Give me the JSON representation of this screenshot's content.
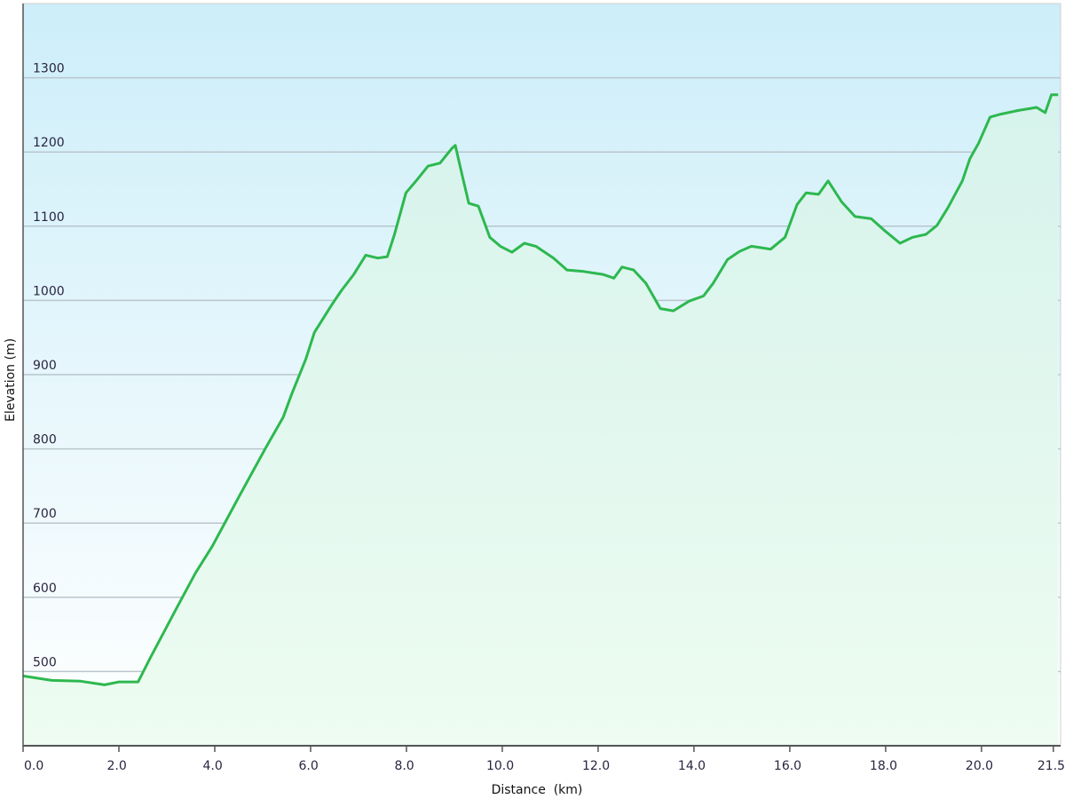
{
  "chart_data": {
    "type": "area",
    "title": "",
    "xlabel": "Distance  (km)",
    "ylabel": "Elevation (m)",
    "xlim": [
      0,
      21.65
    ],
    "ylim": [
      400,
      1400
    ],
    "grid": true,
    "x_ticks": [
      "0.0",
      "2.0",
      "4.0",
      "6.0",
      "8.0",
      "10.0",
      "12.0",
      "14.0",
      "16.0",
      "18.0",
      "20.0",
      "21.5"
    ],
    "x_tick_values": [
      0,
      2,
      4,
      6,
      8,
      10,
      12,
      14,
      16,
      18,
      20,
      21.5
    ],
    "y_ticks": [
      "500",
      "600",
      "700",
      "800",
      "900",
      "1000",
      "1100",
      "1200",
      "1300"
    ],
    "y_tick_values": [
      500,
      600,
      700,
      800,
      900,
      1000,
      1100,
      1200,
      1300
    ],
    "colors": {
      "line": "#2db84f",
      "sky_top": "#cdeef9",
      "fill_top": "#d6f3ec",
      "fill_bottom": "#eefcf1"
    },
    "series": [
      {
        "x": [
          0,
          0.6,
          1.2,
          1.7,
          2.0,
          2.4,
          2.66,
          3.2,
          3.6,
          3.95,
          4.5,
          5.06,
          5.43,
          5.6,
          5.9,
          6.08,
          6.45,
          6.64,
          6.9,
          7.15,
          7.4,
          7.6,
          7.75,
          7.99,
          8.2,
          8.45,
          8.7,
          8.95,
          9.02,
          9.17,
          9.3,
          9.5,
          9.74,
          9.96,
          10.2,
          10.46,
          10.7,
          11.07,
          11.35,
          11.7,
          12.1,
          12.33,
          12.5,
          12.74,
          13.0,
          13.3,
          13.57,
          13.9,
          14.2,
          14.4,
          14.7,
          14.95,
          15.2,
          15.4,
          15.6,
          15.9,
          16.15,
          16.34,
          16.6,
          16.8,
          17.08,
          17.36,
          17.7,
          18.0,
          18.3,
          18.56,
          18.84,
          19.07,
          19.3,
          19.6,
          19.76,
          19.94,
          20.18,
          20.4,
          20.77,
          21.15,
          21.33,
          21.46,
          21.6
        ],
        "y": [
          494,
          488,
          487,
          482,
          486,
          486,
          519,
          585,
          633,
          669,
          735,
          801,
          843,
          873,
          921,
          957,
          995,
          1013,
          1035,
          1061,
          1057,
          1059,
          1089,
          1145,
          1161,
          1181,
          1185,
          1205,
          1209,
          1167,
          1131,
          1127,
          1085,
          1073,
          1065,
          1077,
          1073,
          1057,
          1041,
          1039,
          1035,
          1030,
          1045,
          1041,
          1023,
          989,
          986,
          999,
          1006,
          1023,
          1055,
          1066,
          1073,
          1071,
          1069,
          1085,
          1129,
          1145,
          1143,
          1161,
          1133,
          1113,
          1110,
          1093,
          1077,
          1085,
          1089,
          1101,
          1125,
          1161,
          1191,
          1212,
          1247,
          1251,
          1256,
          1260,
          1253,
          1277,
          1277
        ]
      }
    ]
  }
}
